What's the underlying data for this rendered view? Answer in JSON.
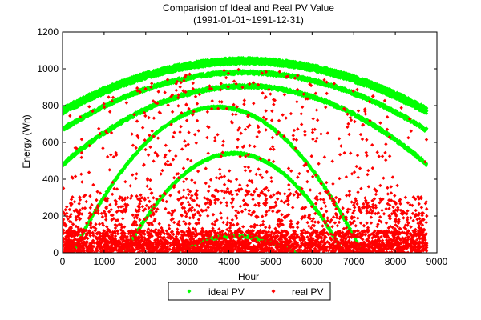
{
  "chart_data": {
    "type": "scatter",
    "title": "Comparision of Ideal and Real PV Value",
    "subtitle": "(1991-01-01~1991-12-31)",
    "xlabel": "Hour",
    "ylabel": "Energy (Wh)",
    "xlim": [
      0,
      9000
    ],
    "ylim": [
      0,
      1200
    ],
    "x_ticks": [
      "0",
      "1000",
      "2000",
      "3000",
      "4000",
      "5000",
      "6000",
      "7000",
      "8000",
      "9000"
    ],
    "y_ticks": [
      "0",
      "200",
      "400",
      "600",
      "800",
      "1000",
      "1200"
    ],
    "grid": false,
    "legend_position": "bottom-center",
    "series": [
      {
        "name": "ideal PV",
        "color": "#00ff00",
        "marker": "diamond",
        "description_points": [
          {
            "x": 0,
            "y": 780
          },
          {
            "x": 4350,
            "y": 1050
          },
          {
            "x": 8760,
            "y": 780
          },
          {
            "x": 0,
            "y": 760
          },
          {
            "x": 4300,
            "y": 1035
          },
          {
            "x": 8760,
            "y": 760
          },
          {
            "x": 0,
            "y": 670
          },
          {
            "x": 4300,
            "y": 980
          },
          {
            "x": 8760,
            "y": 665
          },
          {
            "x": 0,
            "y": 480
          },
          {
            "x": 4200,
            "y": 905
          },
          {
            "x": 8760,
            "y": 480
          },
          {
            "x": 250,
            "y": 0
          },
          {
            "x": 4150,
            "y": 780
          },
          {
            "x": 7200,
            "y": 0
          },
          {
            "x": 1500,
            "y": 0
          },
          {
            "x": 4200,
            "y": 540
          },
          {
            "x": 6750,
            "y": 0
          },
          {
            "x": 2700,
            "y": 0
          },
          {
            "x": 4250,
            "y": 90
          },
          {
            "x": 5600,
            "y": 0
          }
        ]
      },
      {
        "name": "real PV",
        "color": "#ff0000",
        "marker": "diamond",
        "description_points": [
          {
            "x": 0,
            "y": 0
          },
          {
            "x": 500,
            "y": 350
          },
          {
            "x": 1500,
            "y": 600
          },
          {
            "x": 2500,
            "y": 760
          },
          {
            "x": 3500,
            "y": 900
          },
          {
            "x": 4000,
            "y": 980
          },
          {
            "x": 4500,
            "y": 950
          },
          {
            "x": 5500,
            "y": 850
          },
          {
            "x": 6500,
            "y": 650
          },
          {
            "x": 7500,
            "y": 420
          },
          {
            "x": 8500,
            "y": 300
          },
          {
            "x": 8760,
            "y": 0
          }
        ]
      }
    ]
  }
}
